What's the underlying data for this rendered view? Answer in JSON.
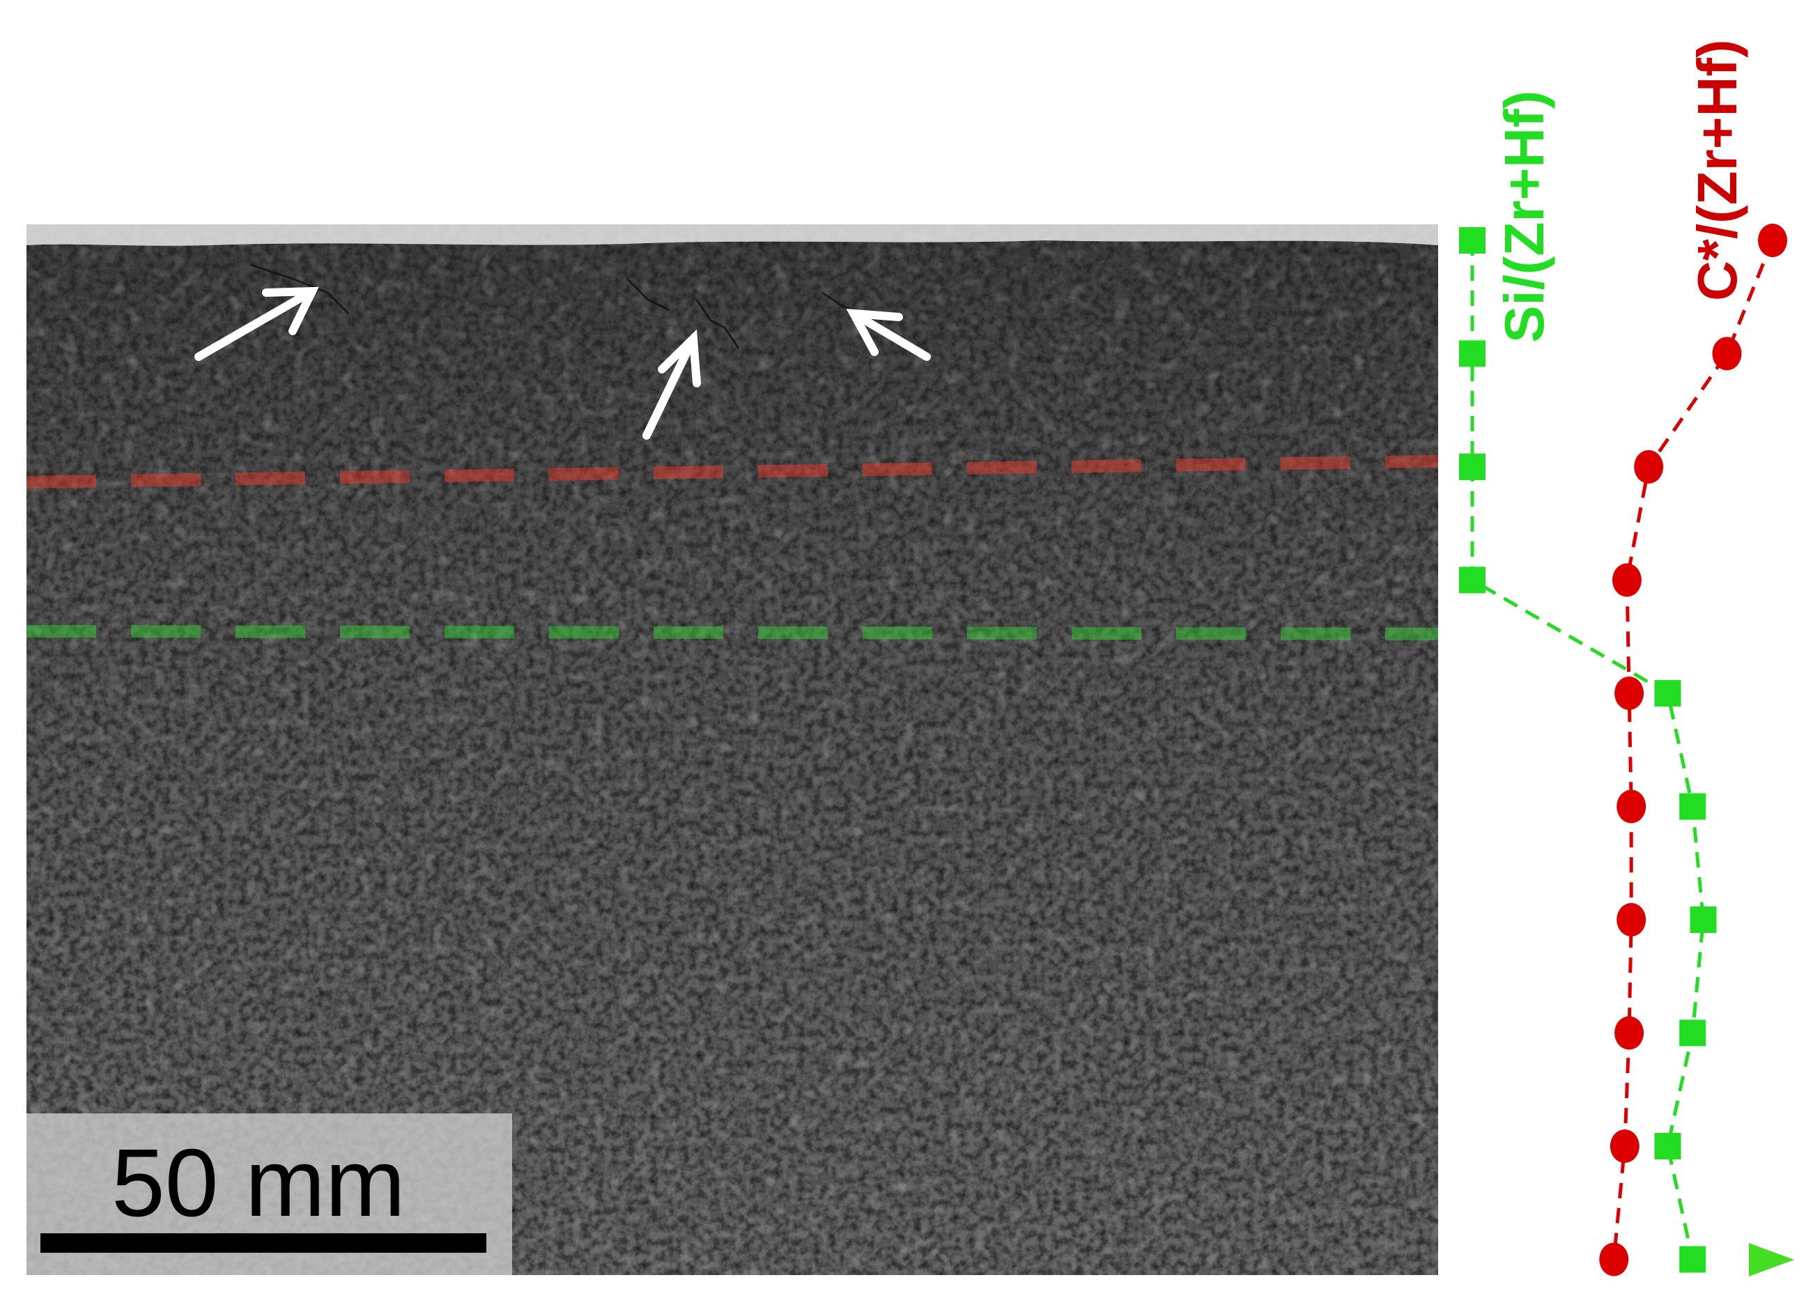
{
  "micrograph": {
    "scale_bar_label": "50 mm"
  },
  "profile": {
    "si_label": "Si/(Zr+Hf)",
    "c_label": "C*/(Zr+Hf)",
    "si_color": "#22dd22",
    "c_color": "#dd0000",
    "si_series": [
      0.0,
      0.0,
      0.0,
      0.0,
      0.55,
      0.62,
      0.65,
      0.62,
      0.55,
      0.62
    ],
    "c_series": [
      1.0,
      0.79,
      0.43,
      0.33,
      0.34,
      0.35,
      0.35,
      0.34,
      0.32,
      0.27
    ]
  },
  "overlay": {
    "red_line_color": "#ff3a2a",
    "green_line_color": "#33dd33",
    "arrow_color": "#ffffff"
  }
}
